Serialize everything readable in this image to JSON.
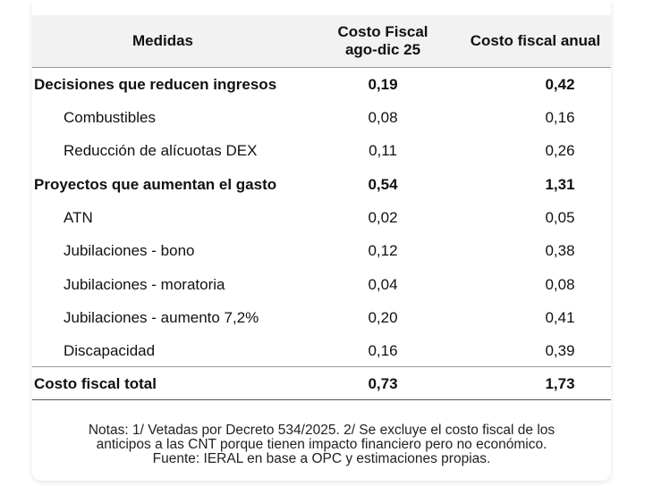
{
  "table": {
    "headers": {
      "medidas": "Medidas",
      "costo_fiscal_line1": "Costo Fiscal",
      "costo_fiscal_line2": "ago-dic 25",
      "costo_anual": "Costo fiscal anual"
    },
    "rows": [
      {
        "label": "Decisiones que reducen ingresos",
        "v1": "0,19",
        "v2": "0,42",
        "bold": true
      },
      {
        "label": "Combustibles",
        "v1": "0,08",
        "v2": "0,16",
        "bold": false
      },
      {
        "label": "Reducción de alícuotas DEX",
        "v1": "0,11",
        "v2": "0,26",
        "bold": false
      },
      {
        "label": "Proyectos que aumentan el gasto",
        "v1": "0,54",
        "v2": "1,31",
        "bold": true
      },
      {
        "label": "ATN",
        "v1": "0,02",
        "v2": "0,05",
        "bold": false
      },
      {
        "label": "Jubilaciones - bono",
        "v1": "0,12",
        "v2": "0,38",
        "bold": false
      },
      {
        "label": "Jubilaciones - moratoria",
        "v1": "0,04",
        "v2": "0,08",
        "bold": false
      },
      {
        "label": "Jubilaciones - aumento 7,2%",
        "v1": "0,20",
        "v2": "0,41",
        "bold": false
      },
      {
        "label": "Discapacidad",
        "v1": "0,16",
        "v2": "0,39",
        "bold": false
      },
      {
        "label": "Costo fiscal total",
        "v1": "0,73",
        "v2": "1,73",
        "bold": true
      }
    ]
  },
  "notes": {
    "line1": "Notas: 1/ Vetadas por Decreto 534/2025. 2/ Se excluye el costo fiscal de los",
    "line2": "anticipos a las CNT porque tienen impacto financiero pero no económico.",
    "line3": "Fuente: IERAL en base a OPC y estimaciones propias."
  }
}
